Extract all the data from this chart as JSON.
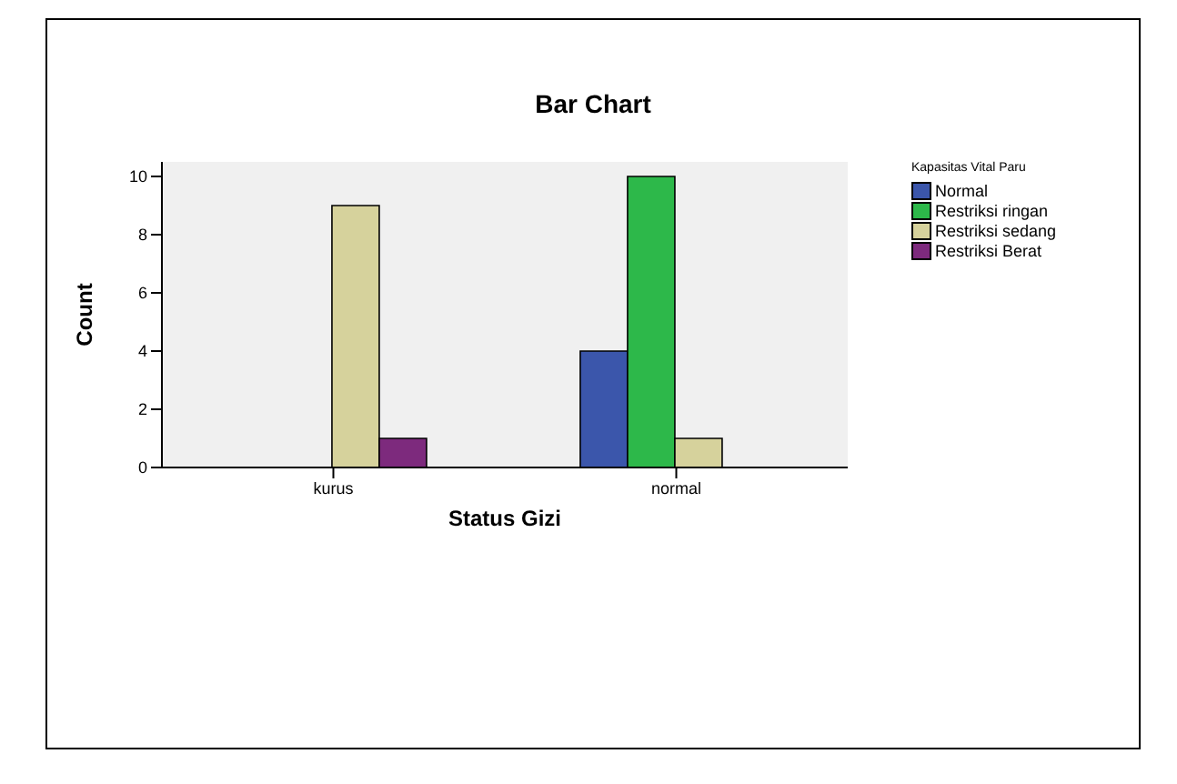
{
  "chart_data": {
    "type": "bar",
    "title": "Bar Chart",
    "xlabel": "Status Gizi",
    "ylabel": "Count",
    "legend_title": "Kapasitas Vital Paru",
    "categories": [
      "kurus",
      "normal"
    ],
    "series": [
      {
        "name": "Normal",
        "color": "#3b56ab",
        "values": [
          0,
          4
        ]
      },
      {
        "name": "Restriksi ringan",
        "color": "#2db84a",
        "values": [
          0,
          10
        ]
      },
      {
        "name": "Restriksi sedang",
        "color": "#d6d29c",
        "values": [
          9,
          1
        ]
      },
      {
        "name": "Restriksi Berat",
        "color": "#7d2a7d",
        "values": [
          1,
          0
        ]
      }
    ],
    "ylim": [
      0,
      10.5
    ],
    "yticks": [
      0,
      2,
      4,
      6,
      8,
      10
    ],
    "legend": "top right"
  }
}
